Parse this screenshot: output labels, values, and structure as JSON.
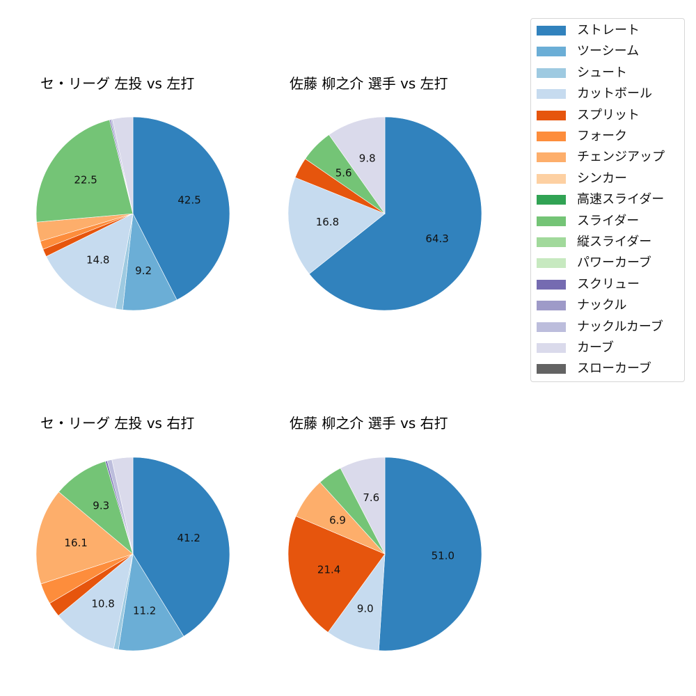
{
  "chart_data": [
    {
      "type": "pie",
      "title": "セ・リーグ 左投 vs 左打",
      "categories": [
        "ストレート",
        "ツーシーム",
        "シュート",
        "カットボール",
        "スプリット",
        "フォーク",
        "チェンジアップ",
        "スライダー",
        "スクリュー",
        "ナックルカーブ",
        "カーブ"
      ],
      "values": [
        42.5,
        9.2,
        1.2,
        14.8,
        1.3,
        1.4,
        3.2,
        22.5,
        0.2,
        0.3,
        3.4
      ],
      "labels_shown": [
        "42.5",
        "9.2",
        "",
        "14.8",
        "",
        "",
        "",
        "22.5",
        "",
        "",
        ""
      ],
      "start_angle": 90,
      "direction": "clockwise"
    },
    {
      "type": "pie",
      "title": "佐藤 柳之介 選手 vs 左打",
      "categories": [
        "ストレート",
        "カットボール",
        "スプリット",
        "スライダー",
        "カーブ"
      ],
      "values": [
        64.3,
        16.8,
        3.5,
        5.6,
        9.8
      ],
      "labels_shown": [
        "64.3",
        "16.8",
        "",
        "5.6",
        "9.8"
      ],
      "start_angle": 90,
      "direction": "clockwise"
    },
    {
      "type": "pie",
      "title": "セ・リーグ 左投 vs 右打",
      "categories": [
        "ストレート",
        "ツーシーム",
        "シュート",
        "カットボール",
        "スプリット",
        "フォーク",
        "チェンジアップ",
        "スライダー",
        "スクリュー",
        "ナックルカーブ",
        "カーブ"
      ],
      "values": [
        41.2,
        11.2,
        0.8,
        10.8,
        2.5,
        3.5,
        16.1,
        9.3,
        0.3,
        0.8,
        3.5
      ],
      "labels_shown": [
        "41.2",
        "11.2",
        "",
        "10.8",
        "",
        "",
        "16.1",
        "9.3",
        "",
        "",
        ""
      ],
      "start_angle": 90,
      "direction": "clockwise"
    },
    {
      "type": "pie",
      "title": "佐藤 柳之介 選手 vs 右打",
      "categories": [
        "ストレート",
        "カットボール",
        "スプリット",
        "チェンジアップ",
        "スライダー",
        "カーブ"
      ],
      "values": [
        51.0,
        9.0,
        21.4,
        6.9,
        4.1,
        7.6
      ],
      "labels_shown": [
        "51.0",
        "9.0",
        "21.4",
        "6.9",
        "",
        "7.6"
      ],
      "start_angle": 90,
      "direction": "clockwise"
    }
  ],
  "colors": {
    "ストレート": "#3182bd",
    "ツーシーム": "#6baed6",
    "シュート": "#9ecae1",
    "カットボール": "#c6dbef",
    "スプリット": "#e6550d",
    "フォーク": "#fd8d3c",
    "チェンジアップ": "#fdae6b",
    "シンカー": "#fdd0a2",
    "高速スライダー": "#31a354",
    "スライダー": "#74c476",
    "縦スライダー": "#a1d99b",
    "パワーカーブ": "#c7e9c0",
    "スクリュー": "#756bb1",
    "ナックル": "#9e9ac8",
    "ナックルカーブ": "#bcbddc",
    "カーブ": "#dadaeb",
    "スローカーブ": "#636363"
  },
  "legend": {
    "items": [
      "ストレート",
      "ツーシーム",
      "シュート",
      "カットボール",
      "スプリット",
      "フォーク",
      "チェンジアップ",
      "シンカー",
      "高速スライダー",
      "スライダー",
      "縦スライダー",
      "パワーカーブ",
      "スクリュー",
      "ナックル",
      "ナックルカーブ",
      "カーブ",
      "スローカーブ"
    ]
  },
  "panels": [
    {
      "title": "セ・リーグ 左投 vs 左打"
    },
    {
      "title": "佐藤 柳之介 選手 vs 左打"
    },
    {
      "title": "セ・リーグ 左投 vs 右打"
    },
    {
      "title": "佐藤 柳之介 選手 vs 右打"
    }
  ]
}
